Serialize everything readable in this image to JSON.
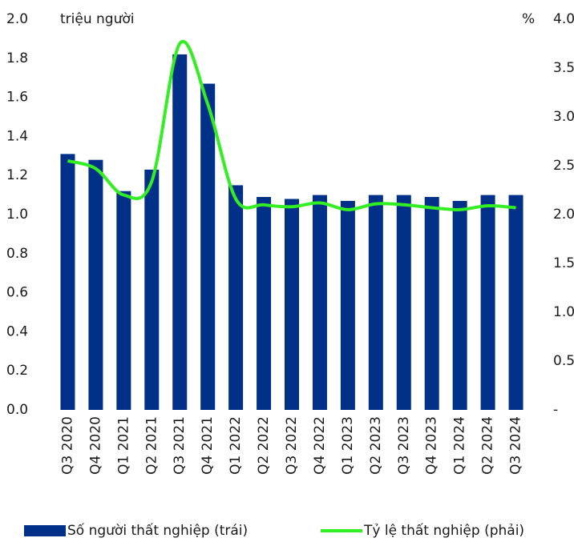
{
  "chart_data": {
    "type": "bar-line",
    "y_label": "triệu người",
    "y2_label": "%",
    "categories": [
      "Q3 2020",
      "Q4 2020",
      "Q1 2021",
      "Q2 2021",
      "Q3 2021",
      "Q4 2021",
      "Q1 2022",
      "Q2 2022",
      "Q3 2022",
      "Q4 2022",
      "Q1 2023",
      "Q2 2023",
      "Q3 2023",
      "Q4 2023",
      "Q1 2024",
      "Q2 2024",
      "Q3 2024"
    ],
    "series": [
      {
        "name": "Số người thất nghiệp (trái)",
        "type": "bar",
        "color": "#003087",
        "axis": "y",
        "values": [
          1.31,
          1.28,
          1.12,
          1.23,
          1.82,
          1.67,
          1.15,
          1.09,
          1.08,
          1.1,
          1.07,
          1.1,
          1.1,
          1.09,
          1.07,
          1.1,
          1.1
        ]
      },
      {
        "name": "Tỷ lệ thất nghiệp (phải)",
        "type": "line",
        "color": "#33ee22",
        "axis": "y2",
        "values": [
          2.55,
          2.47,
          2.2,
          2.34,
          3.75,
          3.13,
          2.16,
          2.1,
          2.08,
          2.12,
          2.05,
          2.11,
          2.1,
          2.07,
          2.05,
          2.09,
          2.07
        ]
      }
    ],
    "ylim": [
      0,
      2
    ],
    "yticks": [
      {
        "value": 0,
        "label": "0.0"
      },
      0.2,
      0.4,
      0.6,
      0.8,
      {
        "value": 1,
        "label": "1.0"
      },
      1.2,
      1.4,
      1.6,
      1.8,
      {
        "value": 2,
        "label": "2.0"
      }
    ],
    "y2lim": [
      0,
      4
    ],
    "y2ticks": [
      {
        "value": 0,
        "label": "-"
      },
      0.5,
      {
        "value": 1,
        "label": "1.0"
      },
      1.5,
      {
        "value": 2,
        "label": "2.0"
      },
      2.5,
      {
        "value": 3,
        "label": "3.0"
      },
      3.5,
      {
        "value": 4,
        "label": "4.0"
      }
    ],
    "legend": "bottom"
  }
}
